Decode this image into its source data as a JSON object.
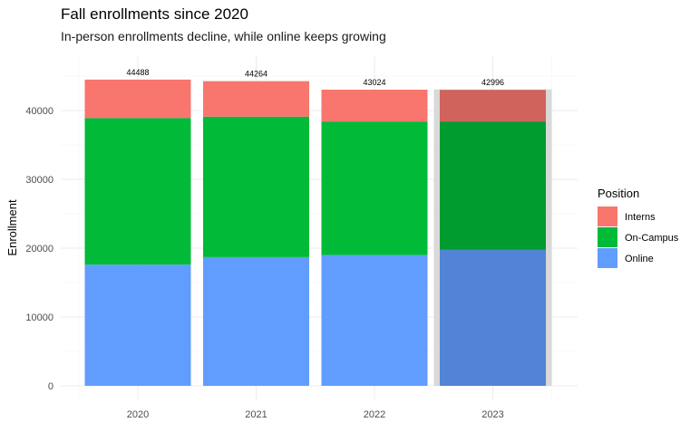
{
  "chart_data": {
    "type": "bar",
    "stacked": true,
    "title": "Fall enrollments since 2020",
    "subtitle": "In-person enrollments decline, while online keeps growing",
    "xlabel": "",
    "ylabel": "Enrollment",
    "ylim": [
      0,
      45000
    ],
    "yticks": [
      0,
      10000,
      20000,
      30000,
      40000
    ],
    "categories": [
      "2020",
      "2021",
      "2022",
      "2023"
    ],
    "series": [
      {
        "name": "Online",
        "values": [
          17600,
          18700,
          19000,
          19800
        ],
        "color": "#619CFF"
      },
      {
        "name": "On-Campus",
        "values": [
          21300,
          20400,
          19400,
          18600
        ],
        "color": "#00BA38"
      },
      {
        "name": "Interns",
        "values": [
          5588,
          5164,
          4624,
          4596
        ],
        "color": "#F8766D"
      }
    ],
    "totals": [
      44488,
      44264,
      43024,
      42996
    ],
    "highlight_category": "2023",
    "legend": {
      "title": "Position",
      "position": "right",
      "order": [
        "Interns",
        "On-Campus",
        "Online"
      ]
    },
    "grid": true
  }
}
